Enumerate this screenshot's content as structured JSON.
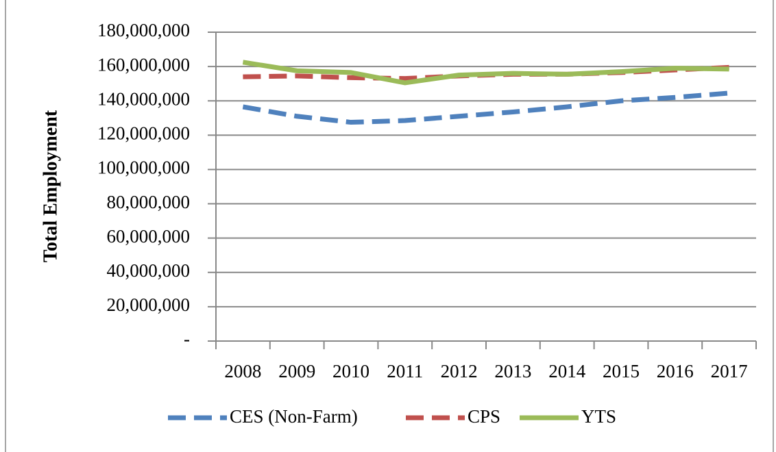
{
  "chart_data": {
    "type": "line",
    "y_label": "Total Employment",
    "categories": [
      "2008",
      "2009",
      "2010",
      "2011",
      "2012",
      "2013",
      "2014",
      "2015",
      "2016",
      "2017"
    ],
    "series": [
      {
        "name": "CES (Non-Farm)",
        "color": "#4f81bd",
        "line_style": "dashed",
        "values": [
          136500000,
          131000000,
          127500000,
          128500000,
          131000000,
          133500000,
          136500000,
          140000000,
          142000000,
          144500000
        ]
      },
      {
        "name": "CPS",
        "color": "#c0504d",
        "line_style": "dashed",
        "values": [
          154000000,
          154500000,
          153500000,
          153000000,
          154500000,
          155500000,
          155500000,
          156500000,
          158000000,
          159500000
        ]
      },
      {
        "name": "YTS",
        "color": "#9bbb59",
        "line_style": "solid",
        "values": [
          162500000,
          157500000,
          156500000,
          150500000,
          155000000,
          156000000,
          155500000,
          157000000,
          159000000,
          158500000
        ]
      }
    ],
    "ylim": [
      0,
      180000000
    ],
    "yticks": [
      {
        "value": 0,
        "label": "-"
      },
      {
        "value": 20000000,
        "label": "20,000,000"
      },
      {
        "value": 40000000,
        "label": "40,000,000"
      },
      {
        "value": 60000000,
        "label": "60,000,000"
      },
      {
        "value": 80000000,
        "label": "80,000,000"
      },
      {
        "value": 100000000,
        "label": "100,000,000"
      },
      {
        "value": 120000000,
        "label": "120,000,000"
      },
      {
        "value": 140000000,
        "label": "140,000,000"
      },
      {
        "value": 160000000,
        "label": "160,000,000"
      },
      {
        "value": 180000000,
        "label": "180,000,000"
      }
    ],
    "grid": true,
    "legend": "bottom"
  }
}
